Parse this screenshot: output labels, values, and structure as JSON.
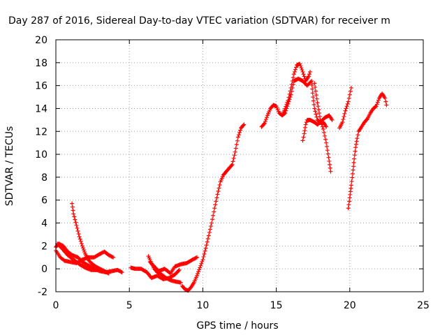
{
  "chart_data": {
    "type": "scatter",
    "title": "Day 287 of 2016, Sidereal Day-to-day VTEC variation (SDTVAR) for receiver m",
    "xlabel": "GPS time / hours",
    "ylabel": "SDTVAR / TECUs",
    "xlim": [
      0,
      25
    ],
    "ylim": [
      -2,
      20
    ],
    "xticks": [
      "0",
      "5",
      "10",
      "15",
      "20",
      "25"
    ],
    "yticks": [
      "-2",
      "0",
      "2",
      "4",
      "6",
      "8",
      "10",
      "12",
      "14",
      "16",
      "18",
      "20"
    ],
    "grid": true,
    "marker": "plus",
    "color": "#ff0000",
    "segments": [
      [
        [
          0.0,
          1.9
        ],
        [
          0.2,
          2.2
        ],
        [
          0.5,
          2.0
        ],
        [
          0.8,
          1.5
        ],
        [
          1.1,
          1.2
        ],
        [
          1.5,
          1.0
        ],
        [
          1.8,
          0.6
        ],
        [
          2.2,
          0.3
        ],
        [
          2.6,
          0.0
        ],
        [
          3.0,
          -0.2
        ],
        [
          3.4,
          -0.3
        ],
        [
          3.8,
          -0.2
        ],
        [
          4.2,
          -0.1
        ],
        [
          4.5,
          -0.3
        ]
      ],
      [
        [
          0.0,
          1.6
        ],
        [
          0.3,
          1.0
        ],
        [
          0.6,
          0.7
        ],
        [
          1.0,
          0.6
        ],
        [
          1.4,
          0.5
        ],
        [
          1.8,
          0.8
        ],
        [
          2.2,
          1.0
        ],
        [
          2.6,
          1.0
        ],
        [
          3.0,
          1.3
        ],
        [
          3.3,
          1.5
        ],
        [
          3.6,
          1.2
        ],
        [
          3.9,
          1.0
        ]
      ],
      [
        [
          1.1,
          5.7
        ],
        [
          1.2,
          4.8
        ],
        [
          1.4,
          3.8
        ],
        [
          1.6,
          2.8
        ],
        [
          1.8,
          2.0
        ],
        [
          2.0,
          1.3
        ],
        [
          2.2,
          0.8
        ],
        [
          2.4,
          0.5
        ],
        [
          2.7,
          0.2
        ],
        [
          3.0,
          0.0
        ],
        [
          3.3,
          -0.2
        ],
        [
          3.6,
          -0.4
        ]
      ],
      [
        [
          0.1,
          2.2
        ],
        [
          0.4,
          1.8
        ],
        [
          0.8,
          1.2
        ],
        [
          1.2,
          0.8
        ],
        [
          1.6,
          0.4
        ],
        [
          2.0,
          0.1
        ],
        [
          2.4,
          -0.1
        ],
        [
          2.8,
          -0.1
        ]
      ],
      [
        [
          5.1,
          0.1
        ],
        [
          5.4,
          0.0
        ],
        [
          5.8,
          0.0
        ],
        [
          6.2,
          -0.3
        ],
        [
          6.5,
          -0.8
        ],
        [
          6.9,
          -0.6
        ],
        [
          7.3,
          -0.9
        ],
        [
          7.7,
          -0.8
        ],
        [
          8.1,
          -0.5
        ],
        [
          8.4,
          -0.1
        ]
      ],
      [
        [
          6.3,
          1.1
        ],
        [
          6.5,
          0.5
        ],
        [
          6.7,
          0.0
        ],
        [
          6.9,
          -0.3
        ],
        [
          7.2,
          -0.5
        ],
        [
          7.5,
          -0.8
        ],
        [
          7.8,
          -1.0
        ],
        [
          8.1,
          -1.1
        ],
        [
          8.5,
          -1.2
        ]
      ],
      [
        [
          6.4,
          0.6
        ],
        [
          6.7,
          0.2
        ],
        [
          7.0,
          -0.2
        ],
        [
          7.4,
          0.0
        ],
        [
          7.8,
          -0.4
        ],
        [
          8.1,
          0.2
        ],
        [
          8.5,
          0.4
        ],
        [
          8.9,
          0.5
        ],
        [
          9.3,
          0.8
        ],
        [
          9.6,
          1.0
        ]
      ],
      [
        [
          8.6,
          -1.5
        ],
        [
          8.8,
          -1.8
        ],
        [
          9.0,
          -1.9
        ],
        [
          9.2,
          -1.6
        ],
        [
          9.4,
          -1.2
        ],
        [
          9.6,
          -0.6
        ],
        [
          9.8,
          0.1
        ],
        [
          10.0,
          0.8
        ],
        [
          10.2,
          1.8
        ],
        [
          10.4,
          2.9
        ],
        [
          10.6,
          4.0
        ],
        [
          10.8,
          5.3
        ],
        [
          11.0,
          6.5
        ],
        [
          11.2,
          7.6
        ],
        [
          11.4,
          8.2
        ],
        [
          11.6,
          8.5
        ],
        [
          11.8,
          8.8
        ],
        [
          12.0,
          9.1
        ],
        [
          12.2,
          10.2
        ],
        [
          12.4,
          11.5
        ],
        [
          12.6,
          12.3
        ],
        [
          12.8,
          12.6
        ]
      ],
      [
        [
          14.0,
          12.4
        ],
        [
          14.2,
          12.7
        ],
        [
          14.4,
          13.4
        ],
        [
          14.6,
          14.0
        ],
        [
          14.8,
          14.3
        ],
        [
          15.0,
          14.2
        ],
        [
          15.2,
          13.6
        ],
        [
          15.4,
          13.4
        ],
        [
          15.6,
          14.0
        ],
        [
          15.8,
          14.7
        ],
        [
          16.0,
          15.8
        ],
        [
          16.2,
          17.0
        ],
        [
          16.4,
          17.8
        ],
        [
          16.6,
          17.9
        ],
        [
          16.8,
          17.2
        ],
        [
          17.0,
          16.4
        ],
        [
          17.2,
          16.8
        ],
        [
          17.3,
          17.2
        ]
      ],
      [
        [
          15.4,
          13.4
        ],
        [
          15.6,
          13.6
        ],
        [
          15.8,
          14.4
        ],
        [
          16.0,
          15.2
        ],
        [
          16.2,
          16.4
        ],
        [
          16.5,
          16.6
        ],
        [
          16.8,
          16.4
        ],
        [
          17.1,
          16.0
        ],
        [
          17.4,
          16.4
        ],
        [
          17.5,
          15.0
        ],
        [
          17.6,
          14.0
        ],
        [
          17.8,
          13.0
        ],
        [
          18.0,
          12.8
        ],
        [
          18.2,
          12.8
        ],
        [
          18.4,
          12.4
        ]
      ],
      [
        [
          17.6,
          16.2
        ],
        [
          17.8,
          14.5
        ],
        [
          18.0,
          13.0
        ],
        [
          18.2,
          12.2
        ],
        [
          18.4,
          11.0
        ],
        [
          18.6,
          9.4
        ],
        [
          18.7,
          8.5
        ]
      ],
      [
        [
          16.8,
          11.2
        ],
        [
          16.9,
          11.8
        ],
        [
          17.0,
          12.6
        ],
        [
          17.1,
          13.0
        ],
        [
          17.3,
          13.0
        ],
        [
          17.6,
          12.8
        ],
        [
          17.8,
          12.6
        ],
        [
          18.0,
          12.8
        ],
        [
          18.3,
          13.2
        ],
        [
          18.6,
          13.4
        ],
        [
          18.8,
          13.0
        ]
      ],
      [
        [
          19.3,
          12.3
        ],
        [
          19.5,
          12.8
        ],
        [
          19.7,
          13.8
        ],
        [
          19.9,
          14.6
        ],
        [
          20.1,
          15.8
        ]
      ],
      [
        [
          19.9,
          5.3
        ],
        [
          20.0,
          6.2
        ],
        [
          20.1,
          7.3
        ],
        [
          20.2,
          8.3
        ],
        [
          20.3,
          9.6
        ],
        [
          20.4,
          10.6
        ],
        [
          20.5,
          11.4
        ],
        [
          20.6,
          12.0
        ],
        [
          20.8,
          12.4
        ],
        [
          21.0,
          12.8
        ],
        [
          21.2,
          13.1
        ],
        [
          21.4,
          13.6
        ],
        [
          21.6,
          14.0
        ],
        [
          21.8,
          14.2
        ],
        [
          22.0,
          14.9
        ],
        [
          22.2,
          15.3
        ],
        [
          22.4,
          14.9
        ],
        [
          22.5,
          14.3
        ]
      ]
    ]
  }
}
